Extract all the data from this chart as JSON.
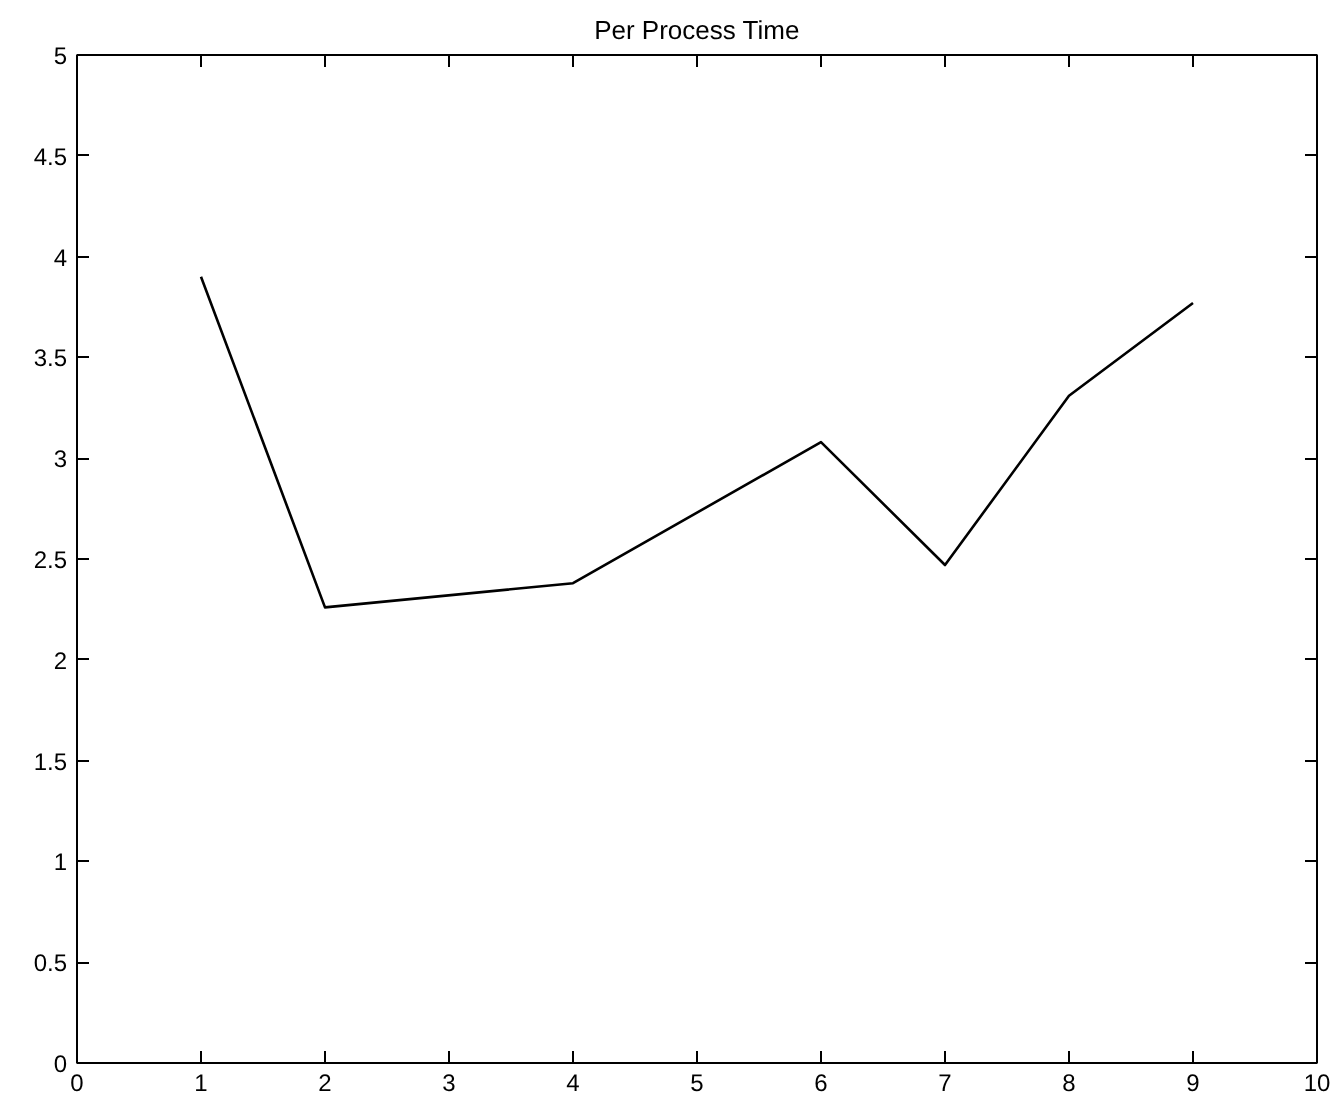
{
  "chart_data": {
    "type": "line",
    "title": "Per Process Time",
    "x": [
      1,
      2,
      4,
      6,
      7,
      8,
      9
    ],
    "series": [
      {
        "color": "#000000",
        "values": [
          3.9,
          2.26,
          2.38,
          3.08,
          2.47,
          3.31,
          3.77
        ]
      }
    ],
    "xlim": [
      0,
      10
    ],
    "xticks": [
      0,
      1,
      2,
      3,
      4,
      5,
      6,
      7,
      8,
      9,
      10
    ],
    "ylim": [
      0,
      5
    ],
    "yticks": [
      0,
      0.5,
      1,
      1.5,
      2,
      2.5,
      3,
      3.5,
      4,
      4.5,
      5
    ],
    "grid": false,
    "marker": "none",
    "line_style": "solid"
  }
}
